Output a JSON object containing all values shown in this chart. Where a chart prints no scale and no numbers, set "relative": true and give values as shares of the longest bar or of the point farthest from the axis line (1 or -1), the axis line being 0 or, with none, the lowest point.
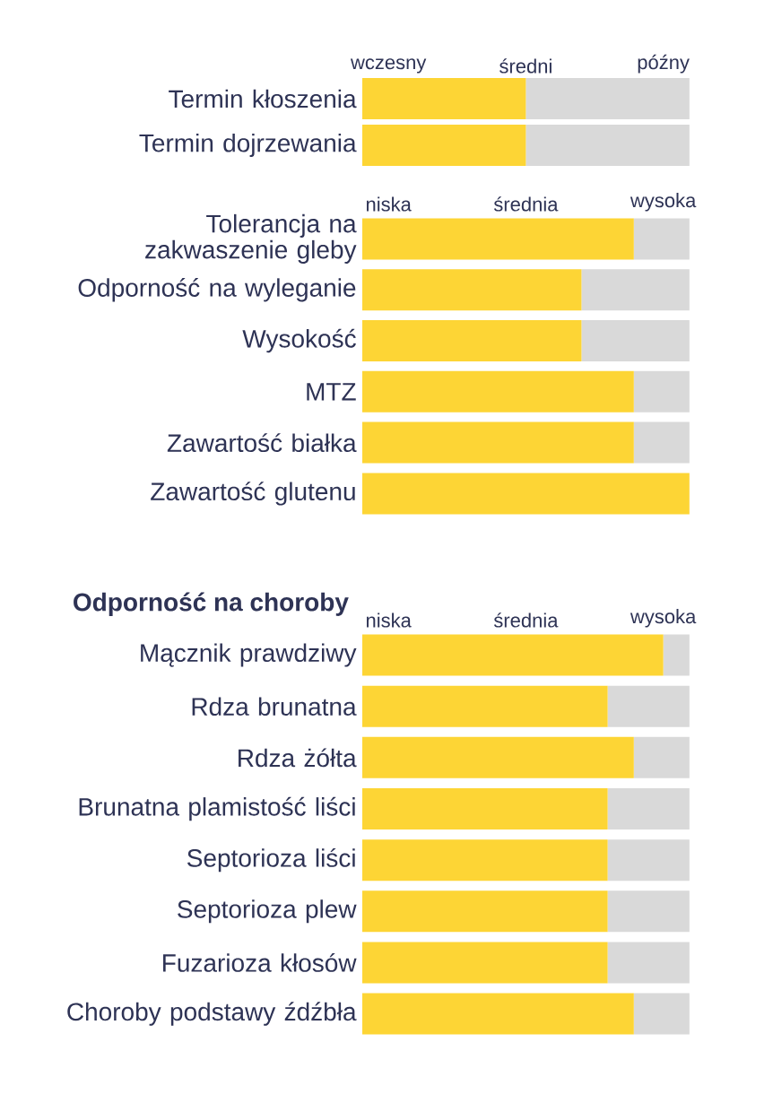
{
  "chart_data": [
    {
      "type": "bar",
      "orientation": "horizontal",
      "stacked": true,
      "relative": true,
      "categories": [
        "Termin kłoszenia",
        "Termin dojrzewania"
      ],
      "series": [
        {
          "color": "#fdd535",
          "values": [
            0.5,
            0.5
          ]
        },
        {
          "color": "#d9d9d9",
          "values": [
            0.5,
            0.5
          ]
        }
      ],
      "annotations": [
        "wczesny",
        "średni",
        "późny"
      ]
    },
    {
      "type": "bar",
      "orientation": "horizontal",
      "stacked": true,
      "relative": true,
      "categories": [
        "Tolerancja na zakwaszenie gleby",
        "Odporność na wyleganie",
        "Wysokość",
        "MTZ",
        "Zawartość białka",
        "Zawartość glutenu"
      ],
      "series": [
        {
          "color": "#fdd535",
          "values": [
            0.83,
            0.67,
            0.67,
            0.83,
            0.83,
            1
          ]
        },
        {
          "color": "#d9d9d9",
          "values": [
            0.17,
            0.33,
            0.33,
            0.17,
            0.17,
            0
          ]
        }
      ],
      "annotations": [
        "niska",
        "średnia",
        "wysoka"
      ]
    },
    {
      "type": "bar",
      "orientation": "horizontal",
      "stacked": true,
      "relative": true,
      "title": "Odporność na choroby",
      "categories": [
        "Mącznik prawdziwy",
        "Rdza brunatna",
        "Rdza żółta",
        "Brunatna plamistość liści",
        "Septorioza liści",
        "Septorioza plew",
        "Fuzarioza kłosów",
        "Choroby podstawy źdźbła"
      ],
      "series": [
        {
          "color": "#fdd535",
          "values": [
            0.92,
            0.75,
            0.83,
            0.75,
            0.75,
            0.75,
            0.75,
            0.83
          ]
        },
        {
          "color": "#d9d9d9",
          "values": [
            0.08,
            0.25,
            0.17,
            0.25,
            0.25,
            0.25,
            0.25,
            0.17
          ]
        }
      ],
      "annotations": [
        "niska",
        "średnia",
        "wysoka"
      ]
    }
  ]
}
